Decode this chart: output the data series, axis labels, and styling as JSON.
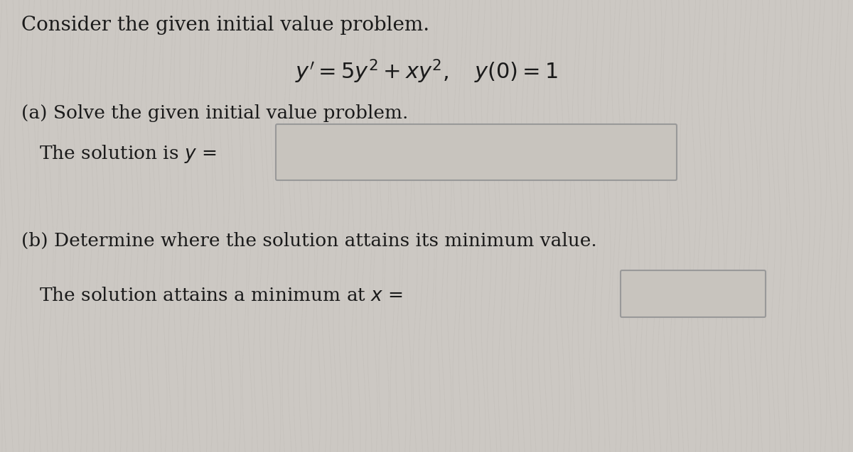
{
  "background_color": "#ccc8c3",
  "title_line": "Consider the given initial value problem.",
  "equation": "$y' = 5y^2 + xy^2, \\quad y(0) = 1$",
  "part_a_label": "(a) Solve the given initial value problem.",
  "part_a_text": "The solution is $y$ =",
  "part_b_label": "(b) Determine where the solution attains its minimum value.",
  "part_b_text": "The solution attains a minimum at $x$ =",
  "font_size_title": 20,
  "font_size_eq": 22,
  "font_size_part": 19,
  "font_size_text": 19,
  "text_color": "#1a1a1a",
  "box_edge_color": "#999999",
  "box_face_color": "#c8c4be"
}
